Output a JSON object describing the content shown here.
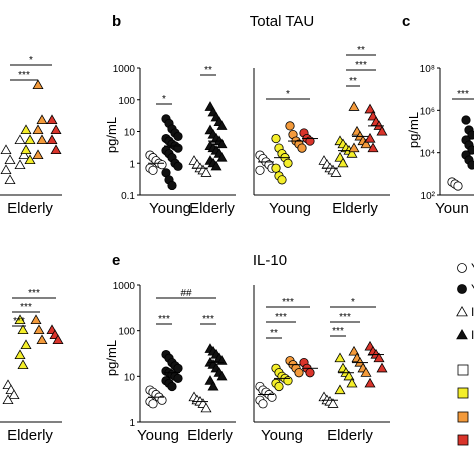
{
  "colors": {
    "white": "#ffffff",
    "black": "#111111",
    "yellow": "#f4ee2a",
    "orange": "#f39a3b",
    "red": "#d9342b",
    "light": "#f6f1c6"
  },
  "panel_b": {
    "letter": "b",
    "title": "Total TAU",
    "ylabel": "pg/mL",
    "yticks": [
      "0.1",
      "1",
      "10",
      "100",
      "1000"
    ],
    "groups": [
      "Young",
      "Elderly"
    ],
    "sig_left": [
      "*",
      "**"
    ],
    "sig_right": [
      "*",
      "**",
      "***",
      "**"
    ]
  },
  "panel_c": {
    "letter": "c",
    "ylabel": "pg/mL",
    "yticks": [
      "10²",
      "10⁴",
      "10⁶",
      "10⁸"
    ],
    "groups": [
      "Youn"
    ],
    "sig": [
      "***"
    ]
  },
  "panel_e": {
    "letter": "e",
    "title": "IL-10",
    "ylabel": "pg/mL",
    "yticks": [
      "1",
      "10",
      "100",
      "1000"
    ],
    "groups": [
      "Young",
      "Elderly"
    ],
    "sig_left": [
      "***",
      "***",
      "##"
    ],
    "sig_right": [
      "**",
      "***",
      "***",
      "***",
      "***",
      "*"
    ]
  },
  "panel_a_partial": {
    "group": "Elderly",
    "sig": [
      "*",
      "***"
    ]
  },
  "panel_d_partial": {
    "group": "Elderly",
    "sig": [
      "***",
      "***",
      "***"
    ]
  },
  "legend": {
    "symbols": [
      "circle-open",
      "circle-filled",
      "triangle-open",
      "triangle-filled"
    ],
    "labels": [
      "Y",
      "Y",
      "I",
      "I"
    ],
    "swatches": [
      "white",
      "yellow",
      "orange",
      "red"
    ]
  },
  "chart_data": [
    {
      "panel": "b-left",
      "type": "scatter",
      "title": "Total TAU",
      "ylabel": "pg/mL",
      "yscale": "log",
      "ylim": [
        0.1,
        1000
      ],
      "series": [
        {
          "group": "Young",
          "marker": "circle",
          "fill": "white",
          "values": [
            1.8,
            1.5,
            1.2,
            1.0,
            0.9,
            0.7,
            0.6
          ]
        },
        {
          "group": "Young",
          "marker": "circle",
          "fill": "black",
          "values": [
            25,
            18,
            12,
            9,
            7,
            6,
            5,
            4,
            3.5,
            3,
            2.5,
            2,
            1.5,
            1,
            0.8,
            0.5,
            0.3,
            0.2
          ]
        },
        {
          "group": "Elderly",
          "marker": "triangle",
          "fill": "white",
          "values": [
            1.2,
            0.9,
            0.7,
            0.6,
            0.5
          ]
        },
        {
          "group": "Elderly",
          "marker": "triangle",
          "fill": "black",
          "values": [
            60,
            40,
            28,
            20,
            15,
            11,
            8,
            6,
            5,
            4,
            3.5,
            3,
            2.5,
            2,
            1.5,
            1.2,
            1,
            0.8
          ]
        }
      ]
    },
    {
      "panel": "b-right",
      "type": "scatter",
      "yscale": "log",
      "ylim": [
        0.1,
        1000
      ],
      "series": [
        {
          "group": "Young",
          "marker": "circle",
          "fill": "white",
          "values": [
            1.8,
            1.4,
            1.1,
            0.9,
            0.7,
            0.6
          ]
        },
        {
          "group": "Young",
          "marker": "circle",
          "fill": "yellow",
          "values": [
            6,
            3,
            2,
            1.5,
            1,
            0.7,
            0.4,
            0.3
          ]
        },
        {
          "group": "Young",
          "marker": "circle",
          "fill": "orange",
          "values": [
            15,
            8,
            5,
            4,
            3
          ]
        },
        {
          "group": "Young",
          "marker": "circle",
          "fill": "red",
          "values": [
            9,
            6,
            5
          ]
        },
        {
          "group": "Elderly",
          "marker": "triangle",
          "fill": "white",
          "values": [
            1.2,
            0.9,
            0.7,
            0.6,
            0.5
          ]
        },
        {
          "group": "Elderly",
          "marker": "triangle",
          "fill": "yellow",
          "values": [
            5,
            4,
            3,
            2.5,
            2,
            1.5,
            1
          ]
        },
        {
          "group": "Elderly",
          "marker": "triangle",
          "fill": "orange",
          "values": [
            60,
            10,
            7,
            5,
            4,
            3
          ]
        },
        {
          "group": "Elderly",
          "marker": "triangle",
          "fill": "red",
          "values": [
            50,
            30,
            20,
            15,
            10,
            6,
            3
          ]
        }
      ]
    },
    {
      "panel": "e-left",
      "type": "scatter",
      "title": "IL-10",
      "ylabel": "pg/mL",
      "yscale": "log",
      "ylim": [
        1,
        1000
      ],
      "series": [
        {
          "group": "Young",
          "marker": "circle",
          "fill": "white",
          "values": [
            5,
            4.5,
            4,
            3.5,
            3,
            2.8,
            2.5
          ]
        },
        {
          "group": "Young",
          "marker": "circle",
          "fill": "black",
          "values": [
            30,
            25,
            20,
            17,
            15,
            13,
            12,
            11,
            10,
            9,
            8,
            7,
            6
          ]
        },
        {
          "group": "Elderly",
          "marker": "triangle",
          "fill": "white",
          "values": [
            3.5,
            3,
            2.8,
            2.5,
            2
          ]
        },
        {
          "group": "Elderly",
          "marker": "triangle",
          "fill": "black",
          "values": [
            40,
            35,
            30,
            25,
            22,
            20,
            18,
            15,
            12,
            10,
            8,
            6
          ]
        }
      ]
    },
    {
      "panel": "e-right",
      "type": "scatter",
      "yscale": "log",
      "ylim": [
        1,
        1000
      ],
      "series": [
        {
          "group": "Young",
          "marker": "circle",
          "fill": "white",
          "values": [
            6,
            5,
            4.5,
            4,
            3.5,
            3,
            2.5
          ]
        },
        {
          "group": "Young",
          "marker": "circle",
          "fill": "yellow",
          "values": [
            15,
            12,
            10,
            9,
            8,
            7,
            6
          ]
        },
        {
          "group": "Young",
          "marker": "circle",
          "fill": "orange",
          "values": [
            22,
            18,
            15,
            12
          ]
        },
        {
          "group": "Young",
          "marker": "circle",
          "fill": "red",
          "values": [
            20,
            15,
            12
          ]
        },
        {
          "group": "Elderly",
          "marker": "triangle",
          "fill": "white",
          "values": [
            3.5,
            3,
            2.8,
            2.5
          ]
        },
        {
          "group": "Elderly",
          "marker": "triangle",
          "fill": "yellow",
          "values": [
            25,
            15,
            12,
            10,
            7,
            5
          ]
        },
        {
          "group": "Elderly",
          "marker": "triangle",
          "fill": "orange",
          "values": [
            35,
            25,
            20,
            15,
            12
          ]
        },
        {
          "group": "Elderly",
          "marker": "triangle",
          "fill": "red",
          "values": [
            45,
            35,
            30,
            25,
            15,
            7
          ]
        }
      ]
    }
  ]
}
